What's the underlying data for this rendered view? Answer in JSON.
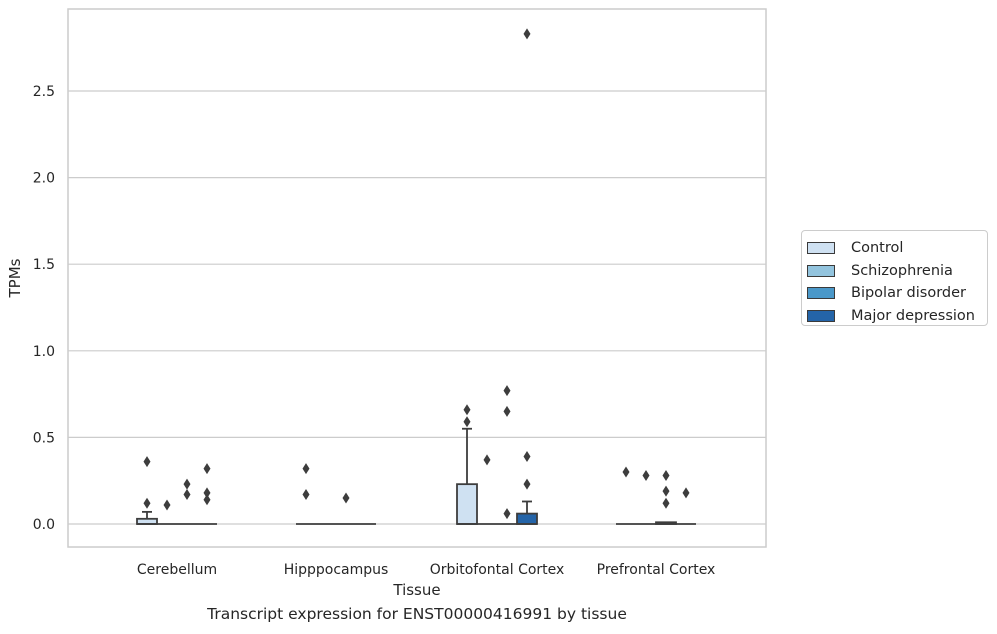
{
  "chart_data": {
    "type": "box",
    "title": "Transcript expression for ENST00000416991 by tissue",
    "xlabel": "Tissue",
    "ylabel": "TPMs",
    "ylim": [
      -0.14,
      2.9
    ],
    "yticks": [
      "0.0",
      "0.5",
      "1.0",
      "1.5",
      "2.0",
      "2.5"
    ],
    "grid": "horizontal",
    "legend_position": "right",
    "categories": [
      "Cerebellum",
      "Hipppocampus",
      "Orbitofontal Cortex",
      "Prefrontal Cortex"
    ],
    "series": [
      {
        "name": "Control",
        "color": "#cfe1f2",
        "boxes": [
          {
            "q1": 0.0,
            "median": 0.0,
            "q3": 0.03,
            "whisker_low": 0.0,
            "whisker_high": 0.07,
            "outliers": [
              0.36,
              0.12
            ]
          },
          {
            "q1": 0.0,
            "median": 0.0,
            "q3": 0.0,
            "whisker_low": 0.0,
            "whisker_high": 0.0,
            "outliers": [
              0.32,
              0.17
            ]
          },
          {
            "q1": 0.0,
            "median": 0.0,
            "q3": 0.23,
            "whisker_low": 0.0,
            "whisker_high": 0.55,
            "outliers": [
              0.66,
              0.59
            ]
          },
          {
            "q1": 0.0,
            "median": 0.0,
            "q3": 0.0,
            "whisker_low": 0.0,
            "whisker_high": 0.0,
            "outliers": [
              0.3
            ]
          }
        ]
      },
      {
        "name": "Schizophrenia",
        "color": "#93c4de",
        "boxes": [
          {
            "q1": 0.0,
            "median": 0.0,
            "q3": 0.0,
            "whisker_low": 0.0,
            "whisker_high": 0.0,
            "outliers": [
              0.11
            ]
          },
          {
            "q1": 0.0,
            "median": 0.0,
            "q3": 0.0,
            "whisker_low": 0.0,
            "whisker_high": 0.0,
            "outliers": []
          },
          {
            "q1": 0.0,
            "median": 0.0,
            "q3": 0.0,
            "whisker_low": 0.0,
            "whisker_high": 0.0,
            "outliers": [
              0.37
            ]
          },
          {
            "q1": 0.0,
            "median": 0.0,
            "q3": 0.0,
            "whisker_low": 0.0,
            "whisker_high": 0.0,
            "outliers": [
              0.28
            ]
          }
        ]
      },
      {
        "name": "Bipolar disorder",
        "color": "#4a98c9",
        "boxes": [
          {
            "q1": 0.0,
            "median": 0.0,
            "q3": 0.0,
            "whisker_low": 0.0,
            "whisker_high": 0.0,
            "outliers": [
              0.23,
              0.17
            ]
          },
          {
            "q1": 0.0,
            "median": 0.0,
            "q3": 0.0,
            "whisker_low": 0.0,
            "whisker_high": 0.0,
            "outliers": [
              0.15
            ]
          },
          {
            "q1": 0.0,
            "median": 0.0,
            "q3": 0.0,
            "whisker_low": 0.0,
            "whisker_high": 0.0,
            "outliers": [
              0.77,
              0.65,
              0.06
            ]
          },
          {
            "q1": 0.0,
            "median": 0.0,
            "q3": 0.01,
            "whisker_low": 0.0,
            "whisker_high": 0.01,
            "outliers": [
              0.28,
              0.19,
              0.12
            ]
          }
        ]
      },
      {
        "name": "Major depression",
        "color": "#2464a8",
        "boxes": [
          {
            "q1": 0.0,
            "median": 0.0,
            "q3": 0.0,
            "whisker_low": 0.0,
            "whisker_high": 0.0,
            "outliers": [
              0.32,
              0.18,
              0.14
            ]
          },
          {
            "q1": 0.0,
            "median": 0.0,
            "q3": 0.0,
            "whisker_low": 0.0,
            "whisker_high": 0.0,
            "outliers": []
          },
          {
            "q1": 0.0,
            "median": 0.0,
            "q3": 0.06,
            "whisker_low": 0.0,
            "whisker_high": 0.13,
            "outliers": [
              2.83,
              0.39,
              0.23
            ]
          },
          {
            "q1": 0.0,
            "median": 0.0,
            "q3": 0.0,
            "whisker_low": 0.0,
            "whisker_high": 0.0,
            "outliers": [
              0.18
            ]
          }
        ]
      }
    ]
  }
}
